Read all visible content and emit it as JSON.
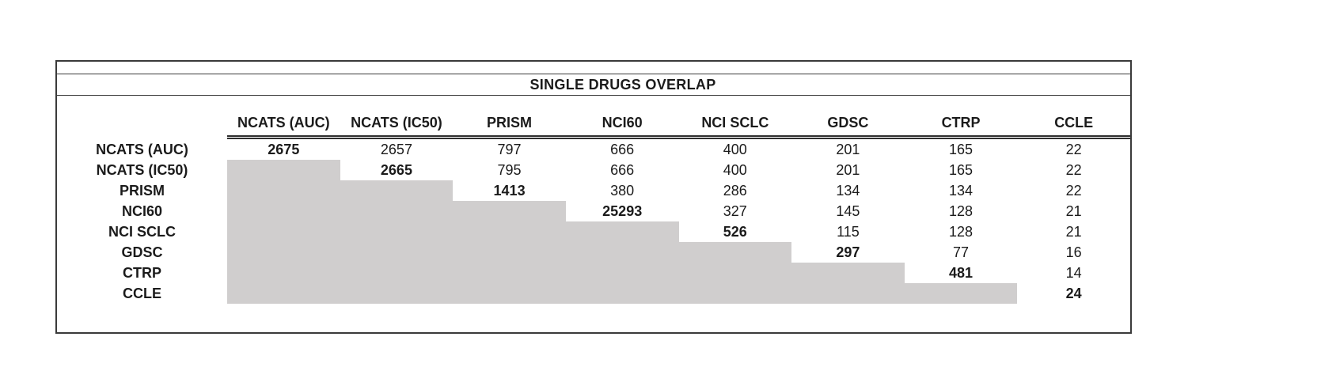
{
  "chart_data": {
    "type": "table",
    "title": "SINGLE DRUGS OVERLAP",
    "columns": [
      "NCATS (AUC)",
      "NCATS (IC50)",
      "PRISM",
      "NCI60",
      "NCI SCLC",
      "GDSC",
      "CTRP",
      "CCLE"
    ],
    "rows": [
      {
        "label": "NCATS (AUC)",
        "values": [
          2675,
          2657,
          797,
          666,
          400,
          201,
          165,
          22
        ]
      },
      {
        "label": "NCATS (IC50)",
        "values": [
          null,
          2665,
          795,
          666,
          400,
          201,
          165,
          22
        ]
      },
      {
        "label": "PRISM",
        "values": [
          null,
          null,
          1413,
          380,
          286,
          134,
          134,
          22
        ]
      },
      {
        "label": "NCI60",
        "values": [
          null,
          null,
          null,
          25293,
          327,
          145,
          128,
          21
        ]
      },
      {
        "label": "NCI SCLC",
        "values": [
          null,
          null,
          null,
          null,
          526,
          115,
          128,
          21
        ]
      },
      {
        "label": "GDSC",
        "values": [
          null,
          null,
          null,
          null,
          null,
          297,
          77,
          16
        ]
      },
      {
        "label": "CTRP",
        "values": [
          null,
          null,
          null,
          null,
          null,
          null,
          481,
          14
        ]
      },
      {
        "label": "CCLE",
        "values": [
          null,
          null,
          null,
          null,
          null,
          null,
          null,
          24
        ]
      }
    ],
    "layout": {
      "shaded_region": "lower-triangle",
      "diagonal_style": "bold",
      "header_underline": "double",
      "shade_color": "#d0cece",
      "border_color": "#3a3a3a",
      "grid": "off",
      "legend": "none"
    }
  }
}
